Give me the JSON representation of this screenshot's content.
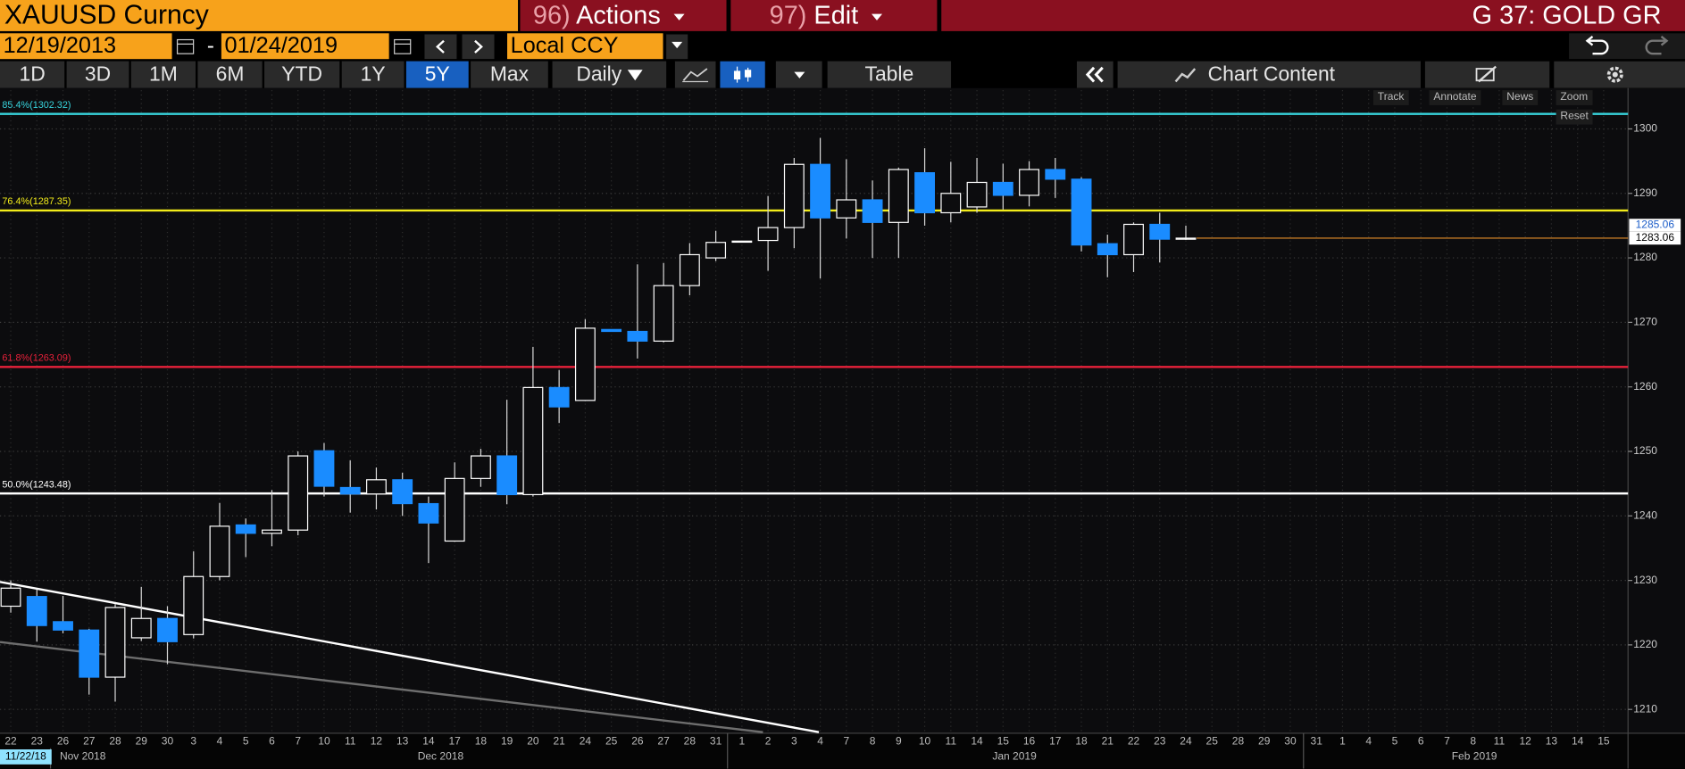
{
  "header": {
    "ticker": "XAUUSD Curncy",
    "actions_num": "96)",
    "actions": "Actions",
    "edit_num": "97)",
    "edit": "Edit",
    "page": "G 37: GOLD GR",
    "start_date": "12/19/2013",
    "separator": "-",
    "end_date": "01/24/2019",
    "currency": "Local CCY"
  },
  "toolbar": {
    "periods": [
      "1D",
      "3D",
      "1M",
      "6M",
      "YTD",
      "1Y",
      "5Y",
      "Max"
    ],
    "selected_period": "5Y",
    "frequency": "Daily",
    "table": "Table",
    "chart_content": "Chart Content"
  },
  "chart_tools": [
    "Track",
    "Annotate",
    "News",
    "Zoom",
    "Reset"
  ],
  "chart_data": {
    "type": "candlestick",
    "categories": [
      "22",
      "23",
      "26",
      "27",
      "28",
      "29",
      "30",
      "3",
      "4",
      "5",
      "6",
      "7",
      "10",
      "11",
      "12",
      "13",
      "14",
      "17",
      "18",
      "19",
      "20",
      "21",
      "24",
      "25",
      "26",
      "27",
      "28",
      "31",
      "1",
      "2",
      "3",
      "4",
      "7",
      "8",
      "9",
      "10",
      "11",
      "14",
      "15",
      "16",
      "17",
      "18",
      "21",
      "22",
      "23",
      "24",
      "25",
      "28",
      "29",
      "30",
      "31",
      "1",
      "4",
      "5",
      "6",
      "7",
      "8",
      "11",
      "12",
      "13",
      "14",
      "15"
    ],
    "open": [
      1226,
      1227.5,
      1223.6,
      1222.3,
      1215,
      1221.1,
      1224.1,
      1221.6,
      1230.6,
      1238.6,
      1237.3,
      1237.8,
      1250.1,
      1244.4,
      1243.4,
      1245.6,
      1241.9,
      1236.1,
      1245.8,
      1249.3,
      1243.3,
      1259.9,
      1257.9,
      1268.9,
      1268.6,
      1267.1,
      1275.7,
      1280,
      1282.5,
      1282.7,
      1284.7,
      1294.5,
      1286.2,
      1289,
      1285.5,
      1293.2,
      1287,
      1287.9,
      1291.7,
      1289.7,
      1293.7,
      1292.2,
      1282.2,
      1280.5,
      1285.2,
      1282.9,
      null,
      null,
      null,
      null,
      null,
      null,
      null,
      null,
      null,
      null,
      null,
      null,
      null,
      null,
      null,
      null
    ],
    "high": [
      1230,
      1228.6,
      1227.6,
      1222.5,
      1226.3,
      1229,
      1226,
      1234.5,
      1242,
      1239.6,
      1244,
      1250,
      1251.3,
      1248.6,
      1247.5,
      1246.7,
      1243,
      1248.3,
      1250.4,
      1258,
      1266.2,
      1262.6,
      1270.5,
      1268.9,
      1279,
      1279.2,
      1282.3,
      1284.2,
      1282.6,
      1289.6,
      1295.5,
      1298.6,
      1295.3,
      1292,
      1294,
      1297,
      1294.9,
      1295.5,
      1294.6,
      1295,
      1295.5,
      1292.5,
      1283.6,
      1285.5,
      1287,
      1285,
      null,
      null,
      null,
      null,
      null,
      null,
      null,
      null,
      null,
      null,
      null,
      null,
      null,
      null,
      null,
      null
    ],
    "low": [
      1225,
      1220.5,
      1221.8,
      1212.3,
      1211.2,
      1220.6,
      1217,
      1221,
      1230,
      1233.6,
      1235.3,
      1237,
      1243,
      1240.5,
      1241,
      1240,
      1232.7,
      1236,
      1244.5,
      1241.8,
      1243,
      1254.4,
      1257.8,
      1268.6,
      1264.4,
      1266.9,
      1274.2,
      1279.5,
      1282.5,
      1278,
      1281.5,
      1276.8,
      1283,
      1280,
      1280,
      1285,
      1285.5,
      1287,
      1287.5,
      1288,
      1289.3,
      1281,
      1277,
      1277.8,
      1279.3,
      1282.8,
      null,
      null,
      null,
      null,
      null,
      null,
      null,
      null,
      null,
      null,
      null,
      null,
      null,
      null,
      null,
      null
    ],
    "close": [
      1228.8,
      1223,
      1222.3,
      1215,
      1225.8,
      1224.1,
      1220.5,
      1230.6,
      1238.4,
      1237.3,
      1237.8,
      1249.3,
      1244.6,
      1243.4,
      1245.6,
      1241.9,
      1238.9,
      1245.8,
      1249.3,
      1243.3,
      1259.9,
      1256.9,
      1269.1,
      1268.6,
      1267.1,
      1275.7,
      1280.5,
      1282.4,
      1282.6,
      1284.7,
      1294.5,
      1286.2,
      1289,
      1285.5,
      1293.7,
      1287,
      1290,
      1291.7,
      1289.7,
      1293.7,
      1292.2,
      1282,
      1280.5,
      1285.2,
      1282.9,
      1283.06,
      null,
      null,
      null,
      null,
      null,
      null,
      null,
      null,
      null,
      null,
      null,
      null,
      null,
      null,
      null,
      null
    ],
    "up_color": "#ffffff",
    "down_color": "#1a8cff",
    "wick_color": "#d8d8d8",
    "ylim": [
      1206.3,
      1306
    ],
    "yticks": [
      1210,
      1220,
      1230,
      1240,
      1250,
      1260,
      1270,
      1280,
      1290,
      1300
    ],
    "grid": true,
    "months": [
      "Nov 2018",
      "Dec 2018",
      "Jan 2019",
      "Feb 2019"
    ],
    "cursor_date": "11/22/18",
    "fib_levels": [
      {
        "label": "85.4%(1302.32)",
        "value": 1302.32,
        "color": "#37d3dc"
      },
      {
        "label": "76.4%(1287.35)",
        "value": 1287.35,
        "color": "#f2ec1a"
      },
      {
        "label": "61.8%(1263.09)",
        "value": 1263.09,
        "color": "#e8203a"
      },
      {
        "label": "50.0%(1243.48)",
        "value": 1243.48,
        "color": "#ffffff"
      }
    ],
    "price_tags": [
      {
        "value": 1285.06,
        "bg": "#ffffff",
        "fg": "#1a5cc8"
      },
      {
        "value": 1283.06,
        "bg": "#ffffff",
        "fg": "#000000"
      }
    ],
    "last_line_color": "#e8902a"
  }
}
